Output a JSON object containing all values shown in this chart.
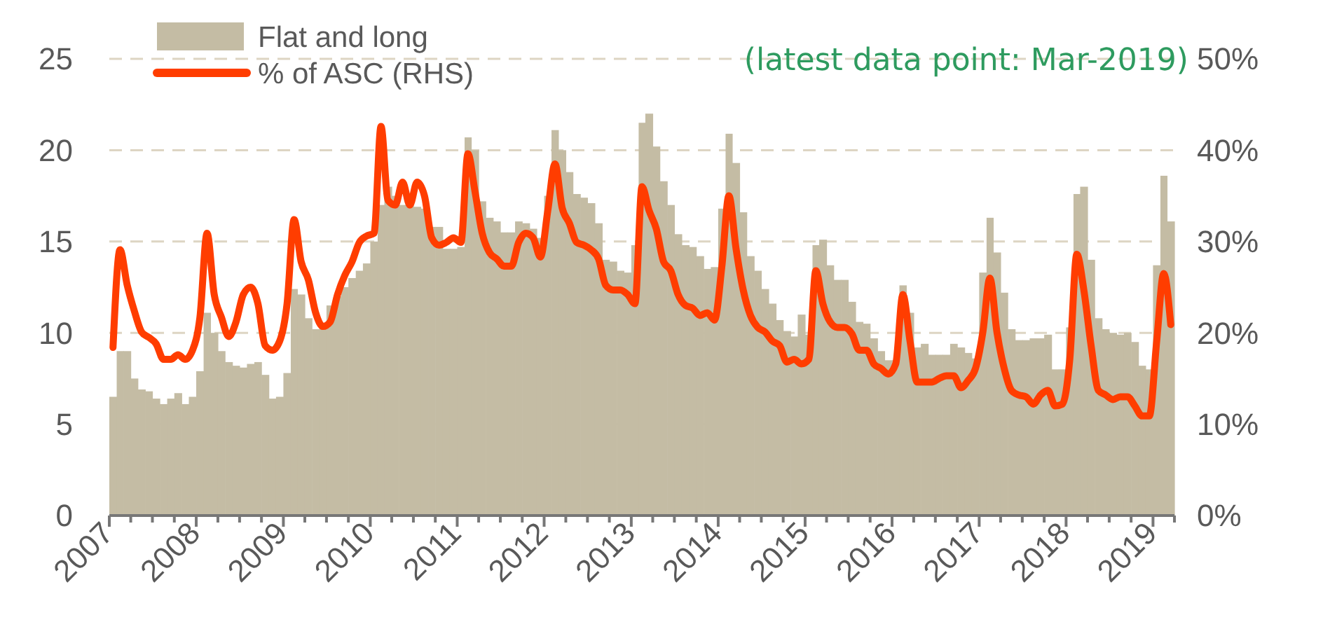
{
  "chart_data": {
    "type": "bar",
    "annotations": [
      "(latest data point: Mar-2019)"
    ],
    "x": [
      "2007-01",
      "2007-02",
      "2007-03",
      "2007-04",
      "2007-05",
      "2007-06",
      "2007-07",
      "2007-08",
      "2007-09",
      "2007-10",
      "2007-11",
      "2007-12",
      "2008-01",
      "2008-02",
      "2008-03",
      "2008-04",
      "2008-05",
      "2008-06",
      "2008-07",
      "2008-08",
      "2008-09",
      "2008-10",
      "2008-11",
      "2008-12",
      "2009-01",
      "2009-02",
      "2009-03",
      "2009-04",
      "2009-05",
      "2009-06",
      "2009-07",
      "2009-08",
      "2009-09",
      "2009-10",
      "2009-11",
      "2009-12",
      "2010-01",
      "2010-02",
      "2010-03",
      "2010-04",
      "2010-05",
      "2010-06",
      "2010-07",
      "2010-08",
      "2010-09",
      "2010-10",
      "2010-11",
      "2010-12",
      "2011-01",
      "2011-02",
      "2011-03",
      "2011-04",
      "2011-05",
      "2011-06",
      "2011-07",
      "2011-08",
      "2011-09",
      "2011-10",
      "2011-11",
      "2011-12",
      "2012-01",
      "2012-02",
      "2012-03",
      "2012-04",
      "2012-05",
      "2012-06",
      "2012-07",
      "2012-08",
      "2012-09",
      "2012-10",
      "2012-11",
      "2012-12",
      "2013-01",
      "2013-02",
      "2013-03",
      "2013-04",
      "2013-05",
      "2013-06",
      "2013-07",
      "2013-08",
      "2013-09",
      "2013-10",
      "2013-11",
      "2013-12",
      "2014-01",
      "2014-02",
      "2014-03",
      "2014-04",
      "2014-05",
      "2014-06",
      "2014-07",
      "2014-08",
      "2014-09",
      "2014-10",
      "2014-11",
      "2014-12",
      "2015-01",
      "2015-02",
      "2015-03",
      "2015-04",
      "2015-05",
      "2015-06",
      "2015-07",
      "2015-08",
      "2015-09",
      "2015-10",
      "2015-11",
      "2015-12",
      "2016-01",
      "2016-02",
      "2016-03",
      "2016-04",
      "2016-05",
      "2016-06",
      "2016-07",
      "2016-08",
      "2016-09",
      "2016-10",
      "2016-11",
      "2016-12",
      "2017-01",
      "2017-02",
      "2017-03",
      "2017-04",
      "2017-05",
      "2017-06",
      "2017-07",
      "2017-08",
      "2017-09",
      "2017-10",
      "2017-11",
      "2017-12",
      "2018-01",
      "2018-02",
      "2018-03",
      "2018-04",
      "2018-05",
      "2018-06",
      "2018-07",
      "2018-08",
      "2018-09",
      "2018-10",
      "2018-11",
      "2018-12",
      "2019-01",
      "2019-02",
      "2019-03"
    ],
    "series": [
      {
        "name": "Flat and long",
        "color": "#c4bca4",
        "values": [
          6.5,
          9.0,
          9.0,
          7.5,
          6.9,
          6.8,
          6.4,
          6.1,
          6.4,
          6.7,
          6.1,
          6.5,
          7.9,
          11.1,
          10.0,
          9.0,
          8.4,
          8.2,
          8.1,
          8.3,
          8.4,
          7.7,
          6.4,
          6.5,
          7.8,
          12.4,
          12.1,
          10.8,
          10.2,
          10.3,
          11.5,
          12.0,
          12.5,
          13.0,
          13.4,
          13.8,
          15.0,
          17.0,
          18.0,
          17.5,
          17.0,
          17.0,
          16.9,
          16.8,
          15.8,
          15.8,
          14.6,
          14.6,
          14.7,
          20.7,
          20.0,
          17.2,
          16.3,
          16.1,
          15.5,
          15.5,
          16.1,
          16.0,
          15.7,
          15.2,
          17.5,
          21.1,
          20.0,
          18.8,
          17.6,
          17.4,
          17.1,
          16.0,
          14.0,
          13.9,
          13.4,
          13.3,
          14.8,
          21.5,
          22.0,
          20.2,
          18.3,
          17.0,
          15.4,
          14.8,
          14.7,
          14.2,
          13.5,
          13.6,
          16.8,
          20.9,
          19.3,
          16.6,
          14.2,
          13.4,
          12.4,
          11.6,
          10.7,
          10.1,
          9.8,
          11.0,
          9.9,
          14.8,
          15.1,
          13.7,
          12.9,
          12.9,
          11.7,
          10.6,
          10.5,
          9.7,
          9.0,
          8.5,
          8.5,
          12.6,
          11.1,
          9.2,
          9.4,
          8.8,
          8.8,
          8.8,
          9.4,
          9.2,
          8.9,
          8.6,
          13.3,
          16.3,
          14.4,
          12.2,
          10.2,
          9.6,
          9.6,
          9.7,
          9.7,
          9.9,
          8.0,
          8.0,
          10.3,
          17.6,
          18.0,
          14.0,
          10.8,
          10.2,
          10.0,
          9.9,
          10.0,
          9.5,
          8.2,
          8.0,
          13.7,
          18.6,
          16.1
        ]
      },
      {
        "name": "% of ASC (RHS)",
        "type": "line",
        "axis": "y2",
        "color": "#ff3d00",
        "values": [
          18.4,
          29.1,
          25.3,
          22.4,
          20.1,
          19.5,
          18.8,
          17.1,
          17.1,
          17.6,
          17.1,
          18.1,
          21.7,
          30.9,
          24.2,
          21.7,
          19.6,
          21.2,
          24.2,
          25.0,
          23.2,
          18.6,
          18.1,
          19.1,
          23.2,
          32.4,
          27.8,
          25.8,
          22.2,
          20.7,
          21.2,
          24.2,
          26.3,
          27.8,
          29.9,
          30.6,
          30.9,
          42.6,
          34.5,
          34.0,
          36.5,
          34.0,
          36.5,
          35.0,
          30.4,
          29.6,
          29.9,
          30.4,
          29.9,
          39.6,
          35.5,
          30.9,
          28.8,
          28.1,
          27.3,
          27.3,
          29.9,
          30.9,
          30.4,
          28.3,
          33.4,
          38.5,
          33.7,
          32.0,
          29.9,
          29.6,
          29.1,
          28.1,
          25.2,
          24.7,
          24.7,
          24.2,
          23.2,
          36.0,
          33.4,
          31.4,
          27.8,
          26.8,
          24.2,
          23.0,
          22.7,
          21.9,
          22.2,
          21.4,
          27.3,
          35.0,
          29.3,
          24.7,
          21.9,
          20.6,
          20.1,
          19.1,
          18.6,
          16.8,
          17.1,
          16.6,
          17.1,
          26.8,
          23.2,
          21.2,
          20.6,
          20.6,
          19.9,
          18.1,
          18.1,
          16.6,
          16.1,
          15.5,
          16.6,
          24.2,
          19.1,
          14.6,
          14.6,
          14.6,
          15.0,
          15.3,
          15.3,
          14.0,
          14.8,
          16.1,
          20.1,
          26.0,
          20.1,
          16.1,
          13.7,
          13.2,
          13.0,
          12.2,
          13.2,
          13.7,
          12.0,
          12.2,
          17.1,
          28.6,
          24.7,
          18.6,
          13.7,
          13.2,
          12.7,
          13.0,
          13.0,
          12.0,
          10.9,
          10.9,
          19.1,
          26.5,
          20.9
        ]
      }
    ],
    "xlim": [
      "2007-01",
      "2019-04"
    ],
    "xticks": [
      {
        "value": "2007",
        "label": "2007"
      },
      {
        "value": "2007-04",
        "label": null
      },
      {
        "value": "2007-07",
        "label": null
      },
      {
        "value": "2007-10",
        "label": null
      },
      {
        "value": "2008",
        "label": "2008"
      },
      {
        "value": "2008-04",
        "label": null
      },
      {
        "value": "2008-07",
        "label": null
      },
      {
        "value": "2008-10",
        "label": null
      },
      {
        "value": "2009",
        "label": "2009"
      },
      {
        "value": "2009-04",
        "label": null
      },
      {
        "value": "2009-07",
        "label": null
      },
      {
        "value": "2009-10",
        "label": null
      },
      {
        "value": "2010",
        "label": "2010"
      },
      {
        "value": "2010-04",
        "label": null
      },
      {
        "value": "2010-07",
        "label": null
      },
      {
        "value": "2010-10",
        "label": null
      },
      {
        "value": "2011",
        "label": "2011"
      },
      {
        "value": "2011-04",
        "label": null
      },
      {
        "value": "2011-07",
        "label": null
      },
      {
        "value": "2011-10",
        "label": null
      },
      {
        "value": "2012",
        "label": "2012"
      },
      {
        "value": "2012-04",
        "label": null
      },
      {
        "value": "2012-07",
        "label": null
      },
      {
        "value": "2012-10",
        "label": null
      },
      {
        "value": "2013",
        "label": "2013"
      },
      {
        "value": "2013-04",
        "label": null
      },
      {
        "value": "2013-07",
        "label": null
      },
      {
        "value": "2013-10",
        "label": null
      },
      {
        "value": "2014",
        "label": "2014"
      },
      {
        "value": "2014-04",
        "label": null
      },
      {
        "value": "2014-07",
        "label": null
      },
      {
        "value": "2014-10",
        "label": null
      },
      {
        "value": "2015",
        "label": "2015"
      },
      {
        "value": "2015-04",
        "label": null
      },
      {
        "value": "2015-07",
        "label": null
      },
      {
        "value": "2015-10",
        "label": null
      },
      {
        "value": "2016",
        "label": "2016"
      },
      {
        "value": "2016-04",
        "label": null
      },
      {
        "value": "2016-07",
        "label": null
      },
      {
        "value": "2016-10",
        "label": null
      },
      {
        "value": "2017",
        "label": "2017"
      },
      {
        "value": "2017-04",
        "label": null
      },
      {
        "value": "2017-07",
        "label": null
      },
      {
        "value": "2017-10",
        "label": null
      },
      {
        "value": "2018",
        "label": "2018"
      },
      {
        "value": "2018-04",
        "label": null
      },
      {
        "value": "2018-07",
        "label": null
      },
      {
        "value": "2018-10",
        "label": null
      },
      {
        "value": "2019",
        "label": "2019"
      },
      {
        "value": "2019-04",
        "label": null
      }
    ],
    "ylim": [
      0,
      25
    ],
    "yticks": [
      0,
      5,
      10,
      15,
      20,
      25
    ],
    "y2lim": [
      0,
      50
    ],
    "y2ticks": [
      {
        "value": 0,
        "label": "0%"
      },
      {
        "value": 10,
        "label": "10%"
      },
      {
        "value": 20,
        "label": "20%"
      },
      {
        "value": 30,
        "label": "30%"
      },
      {
        "value": 40,
        "label": "40%"
      },
      {
        "value": 50,
        "label": "50%"
      }
    ],
    "grid": "y",
    "legend": "top left",
    "line_style": "solid",
    "marker": "none"
  }
}
